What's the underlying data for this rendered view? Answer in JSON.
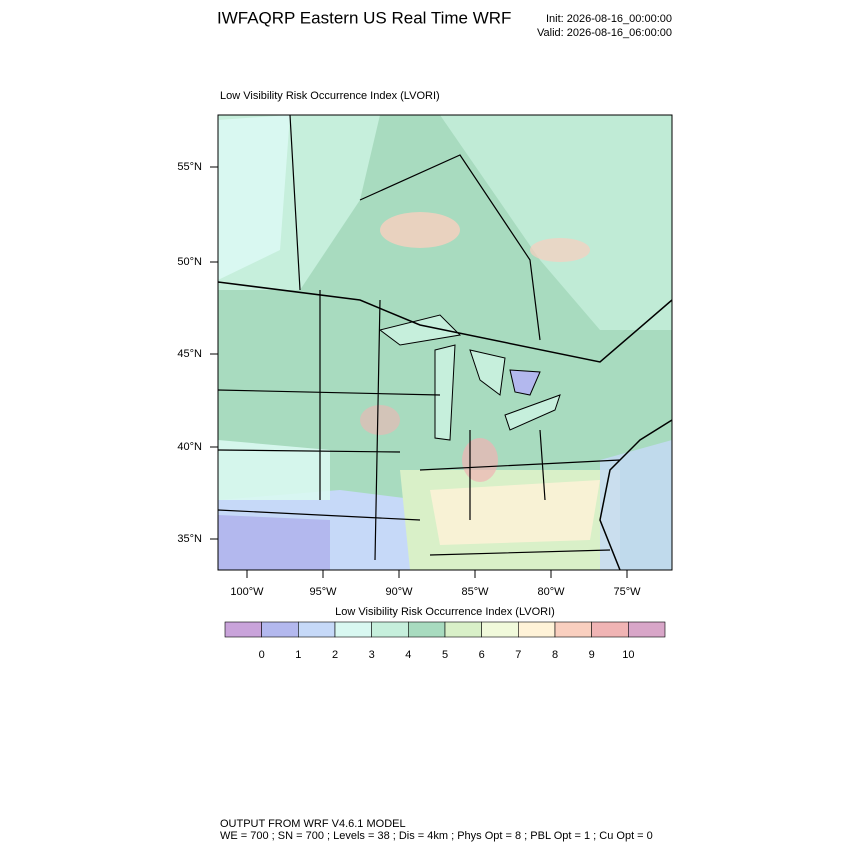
{
  "header": {
    "title": "IWFAQRP Eastern US Real Time WRF",
    "init": "Init: 2026-08-16_00:00:00",
    "valid": "Valid: 2026-08-16_06:00:00"
  },
  "map": {
    "title": "Low Visibility Risk Occurrence Index   (LVORI)",
    "lat_labels": [
      "55°N",
      "50°N",
      "45°N",
      "40°N",
      "35°N"
    ],
    "lon_labels": [
      "100°W",
      "95°W",
      "90°W",
      "85°W",
      "80°W",
      "75°W"
    ]
  },
  "colorbar": {
    "title": "Low Visibility Risk Occurrence Index  (LVORI)",
    "labels": [
      "0",
      "1",
      "2",
      "3",
      "4",
      "5",
      "6",
      "7",
      "8",
      "9",
      "10"
    ],
    "colors": [
      "#c9a3da",
      "#b3b8ee",
      "#c6d9f8",
      "#d9f8f1",
      "#c6efdc",
      "#a8dbbf",
      "#d9f0c8",
      "#f1fadb",
      "#fff3d8",
      "#f9cfbf",
      "#f0b4b4",
      "#d8a6c8"
    ]
  },
  "footer": {
    "line1": "OUTPUT FROM WRF V4.6.1 MODEL",
    "line2": "WE = 700 ; SN = 700 ; Levels = 38 ; Dis = 4km ; Phys Opt = 8 ; PBL Opt = 1 ; Cu Opt = 0"
  }
}
